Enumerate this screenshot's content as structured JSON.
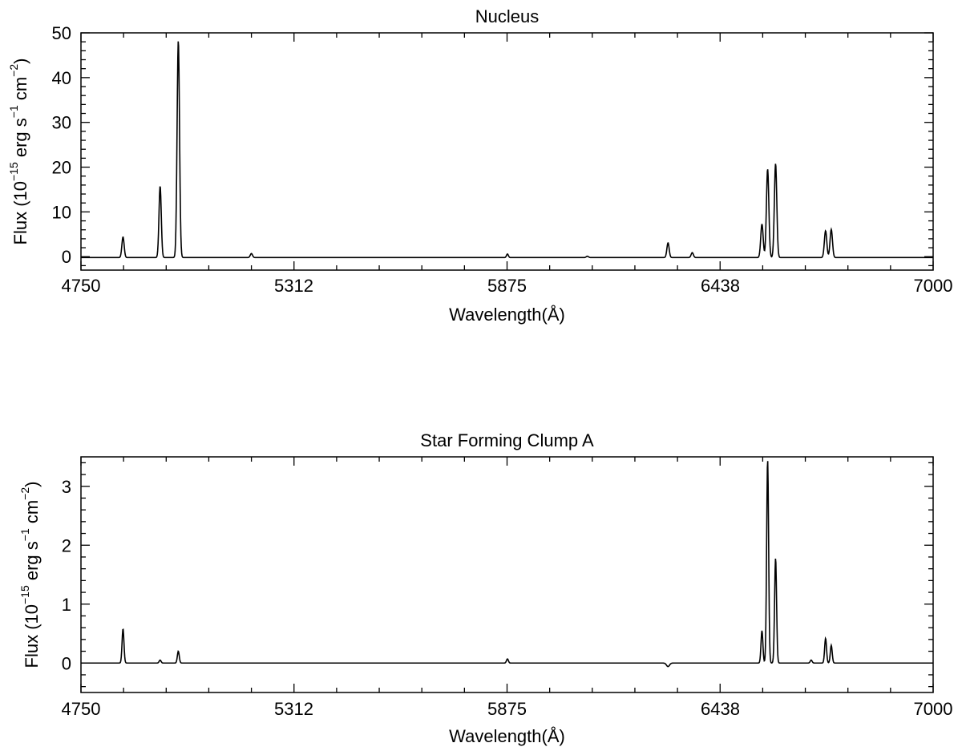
{
  "chart_data": [
    {
      "type": "line",
      "title": "Nucleus",
      "xlabel": "Wavelength(Å)",
      "ylabel": {
        "prefix": "Flux (10",
        "exp1": "−15",
        "mid1": " erg s",
        "exp2": "−1",
        "mid2": " cm",
        "exp3": "−2",
        "suffix": ")"
      },
      "xlim": [
        4750,
        7000
      ],
      "ylim": [
        -3,
        50
      ],
      "x_ticks": [
        4750,
        5312,
        5875,
        6438,
        7000
      ],
      "x_tick_labels": [
        "4750",
        "5312",
        "5875",
        "6438",
        "7000"
      ],
      "y_ticks": [
        0,
        10,
        20,
        30,
        40,
        50
      ],
      "y_tick_labels": [
        "0",
        "10",
        "20",
        "30",
        "40",
        "50"
      ],
      "grid": false,
      "baseline": -0.2,
      "series": [
        {
          "peaks": [
            {
              "center": 4861,
              "height": 4.6,
              "width": 3.0
            },
            {
              "center": 4959,
              "height": 16.0,
              "width": 3.0
            },
            {
              "center": 5007,
              "height": 48.5,
              "width": 3.2
            },
            {
              "center": 5200,
              "height": 0.9,
              "width": 3.0
            },
            {
              "center": 5876,
              "height": 0.8,
              "width": 2.5
            },
            {
              "center": 6087,
              "height": 0.3,
              "width": 3.0
            },
            {
              "center": 6300,
              "height": 3.3,
              "width": 3.0
            },
            {
              "center": 6364,
              "height": 1.1,
              "width": 3.0
            },
            {
              "center": 6548,
              "height": 7.5,
              "width": 3.2
            },
            {
              "center": 6563,
              "height": 19.8,
              "width": 3.2
            },
            {
              "center": 6584,
              "height": 21.0,
              "width": 3.2
            },
            {
              "center": 6716,
              "height": 6.0,
              "width": 3.2
            },
            {
              "center": 6731,
              "height": 6.3,
              "width": 3.2
            }
          ]
        }
      ]
    },
    {
      "type": "line",
      "title": "Star Forming Clump A",
      "xlabel": "Wavelength(Å)",
      "ylabel": {
        "prefix": "Flux (10",
        "exp1": "−15",
        "mid1": " erg s",
        "exp2": "−1",
        "mid2": " cm",
        "exp3": "−2",
        "suffix": ")"
      },
      "xlim": [
        4750,
        7000
      ],
      "ylim": [
        -0.5,
        3.5
      ],
      "x_ticks": [
        4750,
        5312,
        5875,
        6438,
        7000
      ],
      "x_tick_labels": [
        "4750",
        "5312",
        "5875",
        "6438",
        "7000"
      ],
      "y_ticks": [
        0,
        1,
        2,
        3
      ],
      "y_tick_labels": [
        "0",
        "1",
        "2",
        "3"
      ],
      "grid": false,
      "baseline": 0.0,
      "series": [
        {
          "peaks": [
            {
              "center": 4861,
              "height": 0.58,
              "width": 2.5
            },
            {
              "center": 4959,
              "height": 0.05,
              "width": 2.5
            },
            {
              "center": 5007,
              "height": 0.2,
              "width": 2.5
            },
            {
              "center": 5876,
              "height": 0.07,
              "width": 2.5
            },
            {
              "center": 6300,
              "height": -0.06,
              "width": 4.0
            },
            {
              "center": 6548,
              "height": 0.55,
              "width": 2.5
            },
            {
              "center": 6563,
              "height": 3.45,
              "width": 2.6
            },
            {
              "center": 6584,
              "height": 1.78,
              "width": 2.6
            },
            {
              "center": 6678,
              "height": 0.05,
              "width": 2.5
            },
            {
              "center": 6716,
              "height": 0.42,
              "width": 2.5
            },
            {
              "center": 6731,
              "height": 0.3,
              "width": 2.5
            }
          ]
        }
      ]
    }
  ]
}
